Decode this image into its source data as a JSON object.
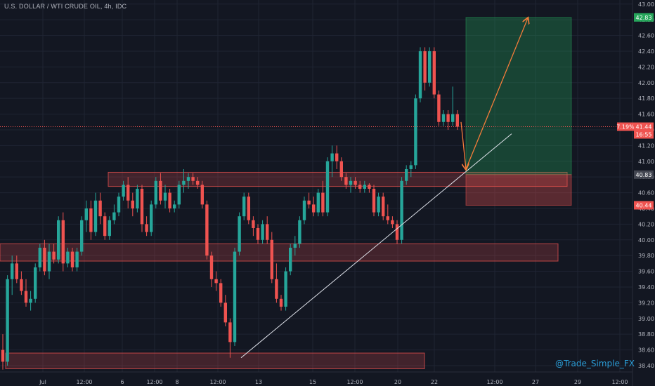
{
  "header": {
    "title": "U.S. DOLLAR / WTI CRUDE OIL, 4h, IDC"
  },
  "watermark": "@Trade_Simple_FX",
  "colors": {
    "background": "#131722",
    "up": "#26a69a",
    "down": "#ef5350",
    "grid": "#1f2433",
    "axis_text": "#b2b5be"
  },
  "chart_data": {
    "type": "candlestick",
    "title": "U.S. DOLLAR / WTI CRUDE OIL, 4h, IDC",
    "xlabel": "",
    "ylabel": "",
    "ylim": [
      38.32,
      43.02
    ],
    "y_ticks": [
      "43.00",
      "42.80",
      "42.60",
      "42.40",
      "42.20",
      "42.00",
      "41.80",
      "41.60",
      "41.40",
      "41.20",
      "41.00",
      "40.80",
      "40.60",
      "40.40",
      "40.20",
      "40.00",
      "39.80",
      "39.60",
      "39.40",
      "39.20",
      "39.00",
      "38.80",
      "38.60",
      "38.40"
    ],
    "x_ticks": [
      "Jul",
      "12:00",
      "6",
      "12:00",
      "8",
      "12:00",
      "13",
      "15",
      "12:00",
      "20",
      "22",
      "12:00",
      "27",
      "29",
      "12:00"
    ],
    "price_labels": {
      "target": "42.83",
      "current_change": "7.19%",
      "current_price": "41.44",
      "countdown": "16:55",
      "entry": "40.83",
      "stop": "40.44"
    },
    "zones": [
      {
        "name": "resistance-zone-upper",
        "from": 40.68,
        "to": 40.86
      },
      {
        "name": "support-zone-middle",
        "from": 39.73,
        "to": 39.95
      },
      {
        "name": "support-zone-lower",
        "from": 38.36,
        "to": 38.56
      }
    ],
    "position": {
      "entry": 40.83,
      "target": 42.83,
      "stop": 40.44
    },
    "trendline": {
      "from": 38.5,
      "to": 41.35
    },
    "current_price": 41.44,
    "series": [
      {
        "candles": [
          [
            38.6,
            38.8,
            38.35,
            38.45
          ],
          [
            38.45,
            39.55,
            38.4,
            39.5
          ],
          [
            39.5,
            39.8,
            39.3,
            39.7
          ],
          [
            39.7,
            39.8,
            39.45,
            39.5
          ],
          [
            39.5,
            39.6,
            39.3,
            39.35
          ],
          [
            39.35,
            39.5,
            39.15,
            39.2
          ],
          [
            39.2,
            39.35,
            39.1,
            39.25
          ],
          [
            39.25,
            39.7,
            39.2,
            39.65
          ],
          [
            39.65,
            39.95,
            39.6,
            39.9
          ],
          [
            39.9,
            40.0,
            39.55,
            39.6
          ],
          [
            39.6,
            39.95,
            39.5,
            39.85
          ],
          [
            39.85,
            39.95,
            39.7,
            39.75
          ],
          [
            39.75,
            40.3,
            39.7,
            40.25
          ],
          [
            40.25,
            40.35,
            39.6,
            39.7
          ],
          [
            39.7,
            39.9,
            39.65,
            39.85
          ],
          [
            39.85,
            39.9,
            39.6,
            39.65
          ],
          [
            39.65,
            39.9,
            39.6,
            39.85
          ],
          [
            39.85,
            40.3,
            39.8,
            40.25
          ],
          [
            40.25,
            40.5,
            40.1,
            40.4
          ],
          [
            40.4,
            40.5,
            40.0,
            40.1
          ],
          [
            40.1,
            40.6,
            40.05,
            40.5
          ],
          [
            40.5,
            40.6,
            40.2,
            40.3
          ],
          [
            40.3,
            40.35,
            40.0,
            40.05
          ],
          [
            40.05,
            40.3,
            40.0,
            40.25
          ],
          [
            40.25,
            40.45,
            40.2,
            40.35
          ],
          [
            40.35,
            40.6,
            40.3,
            40.55
          ],
          [
            40.55,
            40.75,
            40.5,
            40.7
          ],
          [
            40.7,
            40.8,
            40.4,
            40.5
          ],
          [
            40.5,
            40.6,
            40.3,
            40.4
          ],
          [
            40.4,
            40.7,
            40.35,
            40.65
          ],
          [
            40.65,
            40.7,
            40.1,
            40.2
          ],
          [
            40.2,
            40.3,
            40.05,
            40.1
          ],
          [
            40.1,
            40.5,
            40.05,
            40.45
          ],
          [
            40.45,
            40.8,
            40.4,
            40.75
          ],
          [
            40.75,
            40.85,
            40.45,
            40.5
          ],
          [
            40.5,
            40.7,
            40.4,
            40.6
          ],
          [
            40.6,
            40.65,
            40.35,
            40.4
          ],
          [
            40.4,
            40.5,
            40.35,
            40.45
          ],
          [
            40.45,
            40.75,
            40.4,
            40.7
          ],
          [
            40.7,
            40.9,
            40.6,
            40.75
          ],
          [
            40.75,
            40.85,
            40.65,
            40.8
          ],
          [
            40.8,
            40.85,
            40.7,
            40.75
          ],
          [
            40.75,
            40.8,
            40.65,
            40.7
          ],
          [
            40.7,
            40.75,
            40.4,
            40.45
          ],
          [
            40.45,
            40.5,
            39.75,
            39.8
          ],
          [
            39.8,
            39.85,
            39.4,
            39.5
          ],
          [
            39.5,
            39.6,
            39.35,
            39.45
          ],
          [
            39.45,
            39.5,
            39.15,
            39.2
          ],
          [
            39.2,
            39.3,
            38.9,
            38.95
          ],
          [
            38.95,
            39.0,
            38.5,
            38.7
          ],
          [
            38.7,
            39.9,
            38.65,
            39.85
          ],
          [
            39.85,
            40.35,
            39.8,
            40.3
          ],
          [
            40.3,
            40.6,
            40.25,
            40.55
          ],
          [
            40.55,
            40.6,
            40.2,
            40.25
          ],
          [
            40.25,
            40.3,
            40.05,
            40.15
          ],
          [
            40.15,
            40.2,
            39.95,
            40.0
          ],
          [
            40.0,
            40.25,
            39.95,
            40.2
          ],
          [
            40.2,
            40.3,
            39.95,
            40.0
          ],
          [
            40.0,
            40.1,
            39.45,
            39.5
          ],
          [
            39.5,
            39.7,
            39.2,
            39.25
          ],
          [
            39.25,
            39.3,
            39.1,
            39.15
          ],
          [
            39.15,
            39.65,
            39.1,
            39.6
          ],
          [
            39.6,
            39.95,
            39.55,
            39.9
          ],
          [
            39.9,
            40.05,
            39.8,
            39.95
          ],
          [
            39.95,
            40.3,
            39.9,
            40.25
          ],
          [
            40.25,
            40.55,
            40.2,
            40.5
          ],
          [
            40.5,
            40.6,
            40.4,
            40.45
          ],
          [
            40.45,
            40.55,
            40.3,
            40.35
          ],
          [
            40.35,
            40.65,
            40.3,
            40.6
          ],
          [
            40.6,
            40.75,
            40.3,
            40.35
          ],
          [
            40.35,
            41.05,
            40.3,
            41.0
          ],
          [
            41.0,
            41.2,
            40.8,
            41.1
          ],
          [
            41.1,
            41.2,
            40.9,
            41.0
          ],
          [
            41.0,
            41.05,
            40.75,
            40.8
          ],
          [
            40.8,
            40.85,
            40.65,
            40.7
          ],
          [
            40.7,
            40.8,
            40.6,
            40.75
          ],
          [
            40.75,
            40.8,
            40.65,
            40.7
          ],
          [
            40.7,
            40.75,
            40.6,
            40.65
          ],
          [
            40.65,
            40.75,
            40.6,
            40.7
          ],
          [
            40.7,
            40.72,
            40.6,
            40.65
          ],
          [
            40.65,
            40.7,
            40.3,
            40.35
          ],
          [
            40.35,
            40.6,
            40.3,
            40.55
          ],
          [
            40.55,
            40.6,
            40.25,
            40.3
          ],
          [
            40.3,
            40.45,
            40.2,
            40.25
          ],
          [
            40.25,
            40.3,
            40.15,
            40.2
          ],
          [
            40.2,
            40.25,
            39.95,
            40.0
          ],
          [
            40.0,
            40.8,
            39.95,
            40.75
          ],
          [
            40.75,
            40.95,
            40.7,
            40.9
          ],
          [
            40.9,
            41.0,
            40.8,
            40.95
          ],
          [
            40.95,
            41.85,
            40.9,
            41.8
          ],
          [
            41.8,
            42.45,
            41.75,
            42.4
          ],
          [
            42.4,
            42.45,
            41.9,
            42.0
          ],
          [
            42.0,
            42.45,
            41.95,
            42.4
          ],
          [
            42.4,
            42.45,
            41.8,
            41.85
          ],
          [
            41.85,
            41.9,
            41.45,
            41.5
          ],
          [
            41.5,
            41.65,
            41.45,
            41.6
          ],
          [
            41.6,
            41.65,
            41.4,
            41.5
          ],
          [
            41.5,
            41.95,
            41.45,
            41.6
          ],
          [
            41.6,
            41.65,
            41.4,
            41.44
          ]
        ]
      }
    ]
  }
}
